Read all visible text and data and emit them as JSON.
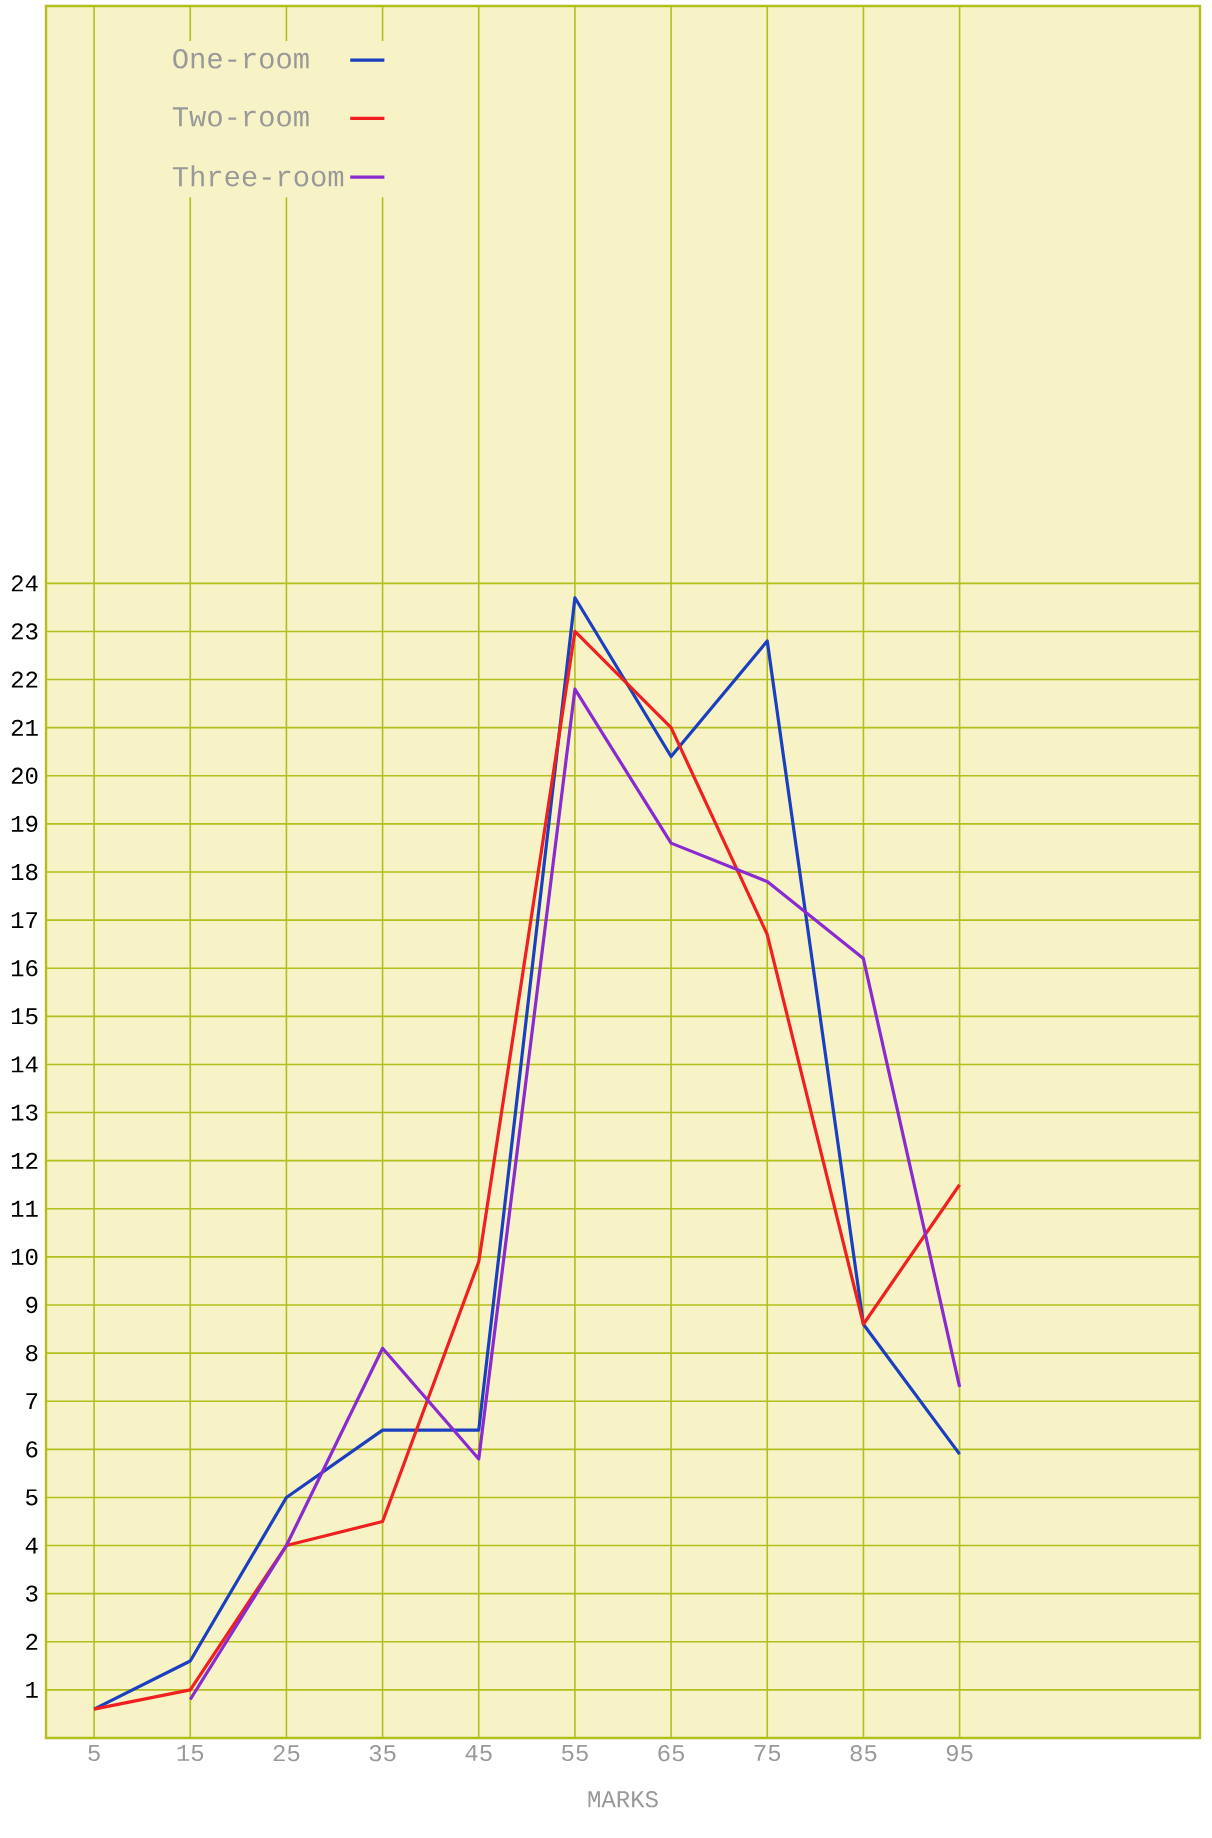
{
  "chart_data": {
    "type": "line",
    "xlabel": "MARKS",
    "x": [
      5,
      15,
      25,
      35,
      45,
      55,
      65,
      75,
      85,
      95
    ],
    "series": [
      {
        "name": "One-room",
        "color": "#1a3fc0",
        "values": [
          0.6,
          1.6,
          5.0,
          6.4,
          6.4,
          23.7,
          20.4,
          22.8,
          8.6,
          5.9
        ]
      },
      {
        "name": "Two-room",
        "color": "#f02020",
        "values": [
          0.6,
          1.0,
          4.0,
          4.5,
          9.9,
          23.0,
          21.0,
          16.7,
          8.6,
          11.5
        ]
      },
      {
        "name": "Three-room",
        "color": "#8a2ad0",
        "values": [
          null,
          0.8,
          4.0,
          8.1,
          5.8,
          21.8,
          18.6,
          17.8,
          16.2,
          7.3
        ]
      }
    ],
    "xlim": [
      0,
      120
    ],
    "ylim": [
      0,
      36
    ],
    "xticks": [
      5,
      15,
      25,
      35,
      45,
      55,
      65,
      75,
      85,
      95
    ],
    "yticks": [
      1,
      2,
      3,
      4,
      5,
      6,
      7,
      8,
      9,
      10,
      11,
      12,
      13,
      14,
      15,
      16,
      17,
      18,
      19,
      20,
      21,
      22,
      23,
      24
    ],
    "grid": true,
    "legend": "top left",
    "marker": "none",
    "line_style": "solid"
  }
}
